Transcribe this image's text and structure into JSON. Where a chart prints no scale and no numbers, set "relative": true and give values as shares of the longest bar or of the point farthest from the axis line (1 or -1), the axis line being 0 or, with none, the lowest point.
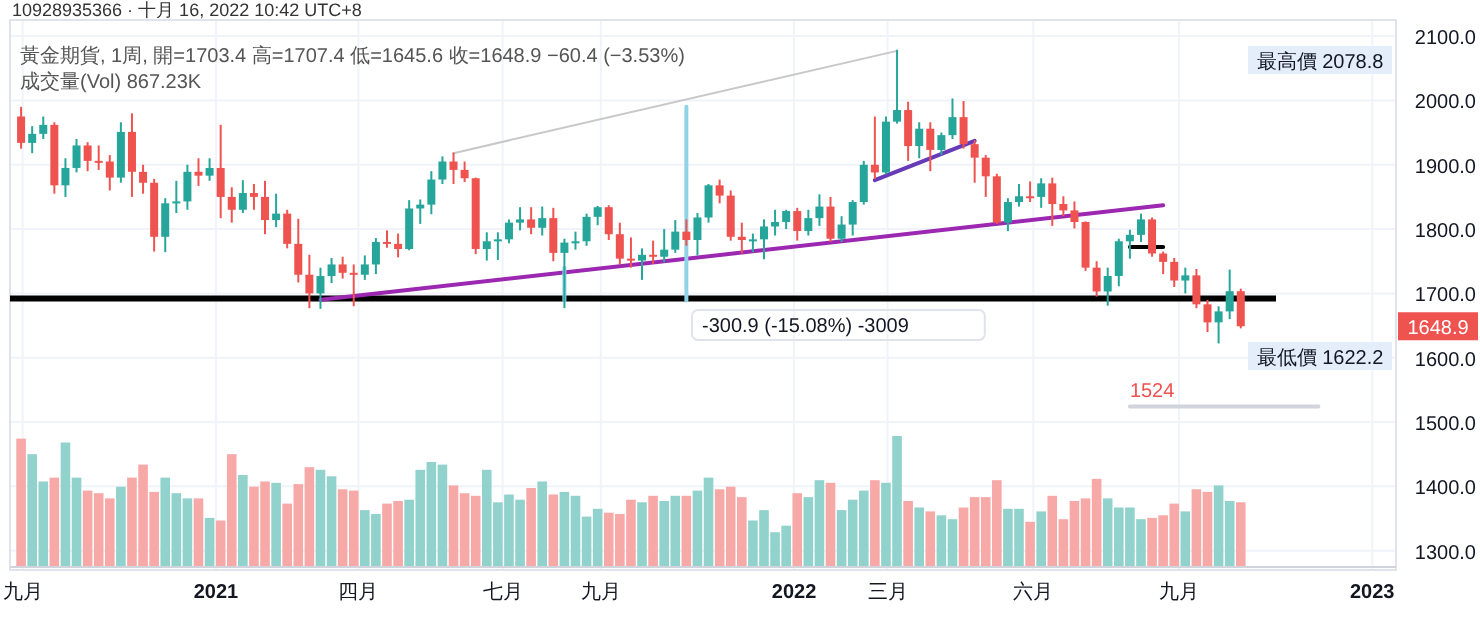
{
  "chart_data": [
    {
      "type": "candlestick",
      "title": "10928935366 · 十月 16, 2022 10:42 UTC+8",
      "subtitle": "黃金期貨, 1周, 開=1703.4 高=1707.4 低=1645.6 收=1648.9 −60.4 (−3.53%)",
      "x": [
        "2020-08-31",
        "2020-09-07",
        "2020-09-14",
        "2020-09-21",
        "2020-09-28",
        "2020-10-05",
        "2020-10-12",
        "2020-10-19",
        "2020-10-26",
        "2020-11-02",
        "2020-11-09",
        "2020-11-16",
        "2020-11-23",
        "2020-11-30",
        "2020-12-07",
        "2020-12-14",
        "2020-12-21",
        "2020-12-28",
        "2021-01-04",
        "2021-01-11",
        "2021-01-18",
        "2021-01-25",
        "2021-02-01",
        "2021-02-08",
        "2021-02-15",
        "2021-02-22",
        "2021-03-01",
        "2021-03-08",
        "2021-03-15",
        "2021-03-22",
        "2021-03-29",
        "2021-04-05",
        "2021-04-12",
        "2021-04-19",
        "2021-04-26",
        "2021-05-03",
        "2021-05-10",
        "2021-05-17",
        "2021-05-24",
        "2021-05-31",
        "2021-06-07",
        "2021-06-14",
        "2021-06-21",
        "2021-06-28",
        "2021-07-05",
        "2021-07-12",
        "2021-07-19",
        "2021-07-26",
        "2021-08-02",
        "2021-08-09",
        "2021-08-16",
        "2021-08-23",
        "2021-08-30",
        "2021-09-06",
        "2021-09-13",
        "2021-09-20",
        "2021-09-27",
        "2021-10-04",
        "2021-10-11",
        "2021-10-18",
        "2021-10-25",
        "2021-11-01",
        "2021-11-08",
        "2021-11-15",
        "2021-11-22",
        "2021-11-29",
        "2021-12-06",
        "2021-12-13",
        "2021-12-20",
        "2021-12-27",
        "2022-01-03",
        "2022-01-10",
        "2022-01-17",
        "2022-01-24",
        "2022-01-31",
        "2022-02-07",
        "2022-02-14",
        "2022-02-21",
        "2022-02-28",
        "2022-03-07",
        "2022-03-14",
        "2022-03-21",
        "2022-03-28",
        "2022-04-04",
        "2022-04-11",
        "2022-04-18",
        "2022-04-25",
        "2022-05-02",
        "2022-05-09",
        "2022-05-16",
        "2022-05-23",
        "2022-05-30",
        "2022-06-06",
        "2022-06-13",
        "2022-06-20",
        "2022-06-27",
        "2022-07-04",
        "2022-07-11",
        "2022-07-18",
        "2022-07-25",
        "2022-08-01",
        "2022-08-08",
        "2022-08-15",
        "2022-08-22",
        "2022-08-29",
        "2022-09-05",
        "2022-09-12",
        "2022-09-19",
        "2022-09-26",
        "2022-10-03",
        "2022-10-10"
      ],
      "ohlc": [
        [
          1975,
          1990,
          1925,
          1934
        ],
        [
          1934,
          1960,
          1918,
          1948
        ],
        [
          1948,
          1975,
          1940,
          1962
        ],
        [
          1962,
          1966,
          1855,
          1868
        ],
        [
          1868,
          1910,
          1850,
          1895
        ],
        [
          1895,
          1940,
          1888,
          1930
        ],
        [
          1930,
          1935,
          1890,
          1906
        ],
        [
          1906,
          1930,
          1892,
          1905
        ],
        [
          1905,
          1915,
          1860,
          1880
        ],
        [
          1880,
          1966,
          1872,
          1951
        ],
        [
          1951,
          1980,
          1850,
          1889
        ],
        [
          1889,
          1900,
          1855,
          1872
        ],
        [
          1872,
          1878,
          1765,
          1788
        ],
        [
          1788,
          1848,
          1764,
          1840
        ],
        [
          1840,
          1875,
          1825,
          1843
        ],
        [
          1843,
          1900,
          1830,
          1889
        ],
        [
          1889,
          1910,
          1867,
          1883
        ],
        [
          1883,
          1910,
          1875,
          1895
        ],
        [
          1895,
          1962,
          1817,
          1850
        ],
        [
          1850,
          1865,
          1810,
          1830
        ],
        [
          1830,
          1876,
          1825,
          1856
        ],
        [
          1856,
          1870,
          1830,
          1850
        ],
        [
          1850,
          1875,
          1792,
          1814
        ],
        [
          1814,
          1855,
          1803,
          1824
        ],
        [
          1824,
          1830,
          1770,
          1777
        ],
        [
          1777,
          1816,
          1717,
          1729
        ],
        [
          1729,
          1760,
          1677,
          1700
        ],
        [
          1700,
          1740,
          1676,
          1727
        ],
        [
          1727,
          1755,
          1716,
          1745
        ],
        [
          1745,
          1757,
          1723,
          1732
        ],
        [
          1732,
          1745,
          1680,
          1729
        ],
        [
          1729,
          1759,
          1721,
          1745
        ],
        [
          1745,
          1786,
          1730,
          1780
        ],
        [
          1780,
          1798,
          1771,
          1777
        ],
        [
          1777,
          1793,
          1756,
          1769
        ],
        [
          1769,
          1845,
          1767,
          1832
        ],
        [
          1832,
          1846,
          1808,
          1838
        ],
        [
          1838,
          1890,
          1823,
          1877
        ],
        [
          1877,
          1913,
          1870,
          1905
        ],
        [
          1905,
          1919,
          1870,
          1892
        ],
        [
          1892,
          1905,
          1873,
          1879
        ],
        [
          1879,
          1880,
          1761,
          1769
        ],
        [
          1769,
          1795,
          1751,
          1781
        ],
        [
          1781,
          1795,
          1752,
          1784
        ],
        [
          1784,
          1815,
          1778,
          1810
        ],
        [
          1810,
          1834,
          1798,
          1815
        ],
        [
          1815,
          1834,
          1792,
          1802
        ],
        [
          1802,
          1835,
          1790,
          1817
        ],
        [
          1817,
          1833,
          1750,
          1763
        ],
        [
          1763,
          1785,
          1677,
          1779
        ],
        [
          1779,
          1796,
          1768,
          1781
        ],
        [
          1781,
          1824,
          1774,
          1819
        ],
        [
          1819,
          1836,
          1806,
          1834
        ],
        [
          1834,
          1837,
          1783,
          1792
        ],
        [
          1792,
          1810,
          1745,
          1754
        ],
        [
          1754,
          1787,
          1740,
          1751
        ],
        [
          1751,
          1770,
          1721,
          1760
        ],
        [
          1760,
          1782,
          1746,
          1757
        ],
        [
          1757,
          1800,
          1748,
          1768
        ],
        [
          1768,
          1814,
          1763,
          1796
        ],
        [
          1796,
          1815,
          1774,
          1783
        ],
        [
          1783,
          1825,
          1759,
          1818
        ],
        [
          1818,
          1870,
          1810,
          1868
        ],
        [
          1868,
          1877,
          1840,
          1852
        ],
        [
          1852,
          1860,
          1782,
          1788
        ],
        [
          1788,
          1810,
          1762,
          1783
        ],
        [
          1783,
          1793,
          1764,
          1784
        ],
        [
          1784,
          1815,
          1753,
          1804
        ],
        [
          1804,
          1830,
          1790,
          1811
        ],
        [
          1811,
          1830,
          1800,
          1828
        ],
        [
          1828,
          1833,
          1782,
          1797
        ],
        [
          1797,
          1830,
          1790,
          1817
        ],
        [
          1817,
          1854,
          1805,
          1835
        ],
        [
          1835,
          1850,
          1780,
          1785
        ],
        [
          1785,
          1820,
          1780,
          1807
        ],
        [
          1807,
          1845,
          1790,
          1842
        ],
        [
          1842,
          1906,
          1838,
          1900
        ],
        [
          1900,
          1975,
          1878,
          1888
        ],
        [
          1888,
          1975,
          1885,
          1967
        ],
        [
          1967,
          2078.8,
          1964,
          1985
        ],
        [
          1985,
          1998,
          1906,
          1929
        ],
        [
          1929,
          1966,
          1910,
          1956
        ],
        [
          1956,
          1966,
          1890,
          1923
        ],
        [
          1923,
          1950,
          1915,
          1946
        ],
        [
          1946,
          2003,
          1940,
          1974
        ],
        [
          1974,
          1999,
          1925,
          1932
        ],
        [
          1932,
          1938,
          1872,
          1911
        ],
        [
          1911,
          1915,
          1850,
          1882
        ],
        [
          1882,
          1886,
          1808,
          1810
        ],
        [
          1810,
          1848,
          1797,
          1842
        ],
        [
          1842,
          1870,
          1835,
          1851
        ],
        [
          1851,
          1874,
          1842,
          1850
        ],
        [
          1850,
          1879,
          1833,
          1871
        ],
        [
          1871,
          1880,
          1805,
          1839
        ],
        [
          1839,
          1851,
          1820,
          1829
        ],
        [
          1829,
          1843,
          1801,
          1811
        ],
        [
          1811,
          1812,
          1735,
          1740
        ],
        [
          1740,
          1750,
          1695,
          1703
        ],
        [
          1703,
          1740,
          1681,
          1727
        ],
        [
          1727,
          1785,
          1711,
          1781
        ],
        [
          1781,
          1799,
          1754,
          1791
        ],
        [
          1791,
          1824,
          1780,
          1815
        ],
        [
          1815,
          1818,
          1757,
          1762
        ],
        [
          1762,
          1765,
          1730,
          1749
        ],
        [
          1749,
          1755,
          1710,
          1720
        ],
        [
          1720,
          1740,
          1700,
          1728
        ],
        [
          1728,
          1738,
          1677,
          1683
        ],
        [
          1683,
          1690,
          1640,
          1655
        ],
        [
          1655,
          1680,
          1622.2,
          1672
        ],
        [
          1672,
          1737,
          1660,
          1703.4
        ],
        [
          1703.4,
          1707.4,
          1645.6,
          1648.9
        ]
      ],
      "colors": [
        "#ef5350",
        "#26a69a",
        "#26a69a",
        "#ef5350",
        "#26a69a",
        "#26a69a",
        "#ef5350",
        "#ef5350",
        "#ef5350",
        "#26a69a",
        "#ef5350",
        "#ef5350",
        "#ef5350",
        "#26a69a",
        "#26a69a",
        "#26a69a",
        "#ef5350",
        "#26a69a",
        "#ef5350",
        "#ef5350",
        "#26a69a",
        "#ef5350",
        "#ef5350",
        "#26a69a",
        "#ef5350",
        "#ef5350",
        "#ef5350",
        "#26a69a",
        "#26a69a",
        "#ef5350",
        "#ef5350",
        "#26a69a",
        "#26a69a",
        "#ef5350",
        "#ef5350",
        "#26a69a",
        "#26a69a",
        "#26a69a",
        "#26a69a",
        "#ef5350",
        "#ef5350",
        "#ef5350",
        "#26a69a",
        "#26a69a",
        "#26a69a",
        "#26a69a",
        "#ef5350",
        "#26a69a",
        "#ef5350",
        "#26a69a",
        "#26a69a",
        "#26a69a",
        "#26a69a",
        "#ef5350",
        "#ef5350",
        "#ef5350",
        "#26a69a",
        "#ef5350",
        "#26a69a",
        "#26a69a",
        "#ef5350",
        "#26a69a",
        "#26a69a",
        "#ef5350",
        "#ef5350",
        "#ef5350",
        "#26a69a",
        "#26a69a",
        "#26a69a",
        "#26a69a",
        "#ef5350",
        "#26a69a",
        "#26a69a",
        "#ef5350",
        "#26a69a",
        "#26a69a",
        "#26a69a",
        "#ef5350",
        "#26a69a",
        "#26a69a",
        "#ef5350",
        "#26a69a",
        "#ef5350",
        "#26a69a",
        "#26a69a",
        "#ef5350",
        "#ef5350",
        "#ef5350",
        "#ef5350",
        "#26a69a",
        "#26a69a",
        "#ef5350",
        "#26a69a",
        "#ef5350",
        "#ef5350",
        "#ef5350",
        "#ef5350",
        "#ef5350",
        "#26a69a",
        "#26a69a",
        "#26a69a",
        "#26a69a",
        "#ef5350",
        "#ef5350",
        "#ef5350",
        "#26a69a",
        "#ef5350",
        "#ef5350",
        "#26a69a",
        "#26a69a",
        "#ef5350"
      ],
      "series": [
        {
          "type": "line",
          "x": [
            "2021-03-08",
            "2022-08-22"
          ],
          "values": [
            1690,
            1837
          ],
          "color": "#9c27b0"
        },
        {
          "type": "line",
          "x": [
            "2022-02-21",
            "2022-04-25"
          ],
          "values": [
            1876,
            1937
          ],
          "color": "#673ab7"
        },
        {
          "type": "line",
          "x": [
            "2021-05-31",
            "2022-03-07"
          ],
          "values": [
            1918,
            2077
          ],
          "color": "#c8c8c8"
        },
        {
          "type": "line",
          "x": [
            "2022-08-01",
            "2022-08-22"
          ],
          "values": [
            1772,
            1772
          ],
          "color": "#000000"
        },
        {
          "type": "line",
          "x": [
            "2021-10-25",
            "2021-10-25"
          ],
          "values": [
            1990,
            1689
          ],
          "color": "#8fd3e8"
        },
        {
          "type": "line",
          "x": [
            "2021-08-09",
            "2021-08-09"
          ],
          "values": [
            1740,
            1689
          ],
          "color": "#8fd3e8"
        },
        {
          "type": "line",
          "x": [
            "2022-08-01",
            "2022-11-28"
          ],
          "values": [
            1524,
            1524
          ],
          "color": "#d1d4dc"
        }
      ],
      "ref_lines": [
        {
          "axis": "y",
          "value": 1692,
          "color": "#000000"
        }
      ],
      "annotations": [
        "-300.9 (-15.08%) -3009",
        {
          "text": "1524",
          "x": "2022-08-01",
          "y": 1524
        },
        "最高價 2078.8",
        "最低價 1622.2",
        {
          "text": "1648.9",
          "y": 1648.9
        }
      ],
      "xlim": [
        "2020-08-24",
        "2023-01-16"
      ],
      "xticks": [
        {
          "value": "2020-09-01",
          "label": "九月"
        },
        {
          "value": "2021-01-01",
          "label": "2021"
        },
        {
          "value": "2021-04-01",
          "label": "四月"
        },
        {
          "value": "2021-07-01",
          "label": "七月"
        },
        {
          "value": "2021-09-01",
          "label": "九月"
        },
        {
          "value": "2022-01-01",
          "label": "2022"
        },
        {
          "value": "2022-03-01",
          "label": "三月"
        },
        {
          "value": "2022-06-01",
          "label": "六月"
        },
        {
          "value": "2022-09-01",
          "label": "九月"
        },
        {
          "value": "2023-01-01",
          "label": "2023"
        }
      ],
      "ylim": [
        1270,
        2125
      ],
      "yticks": [
        {
          "value": 1300,
          "label": "1300.0"
        },
        {
          "value": 1400,
          "label": "1400.0"
        },
        {
          "value": 1500,
          "label": "1500.0"
        },
        {
          "value": 1600,
          "label": "1600.0"
        },
        {
          "value": 1700,
          "label": "1700.0"
        },
        {
          "value": 1800,
          "label": "1800.0"
        },
        {
          "value": 1900,
          "label": "1900.0"
        },
        {
          "value": 2000,
          "label": "2000.0"
        },
        {
          "value": 2100,
          "label": "2100.0"
        }
      ],
      "grid": true
    },
    {
      "type": "bar",
      "relative": true,
      "annotations": [
        "成交量(Vol) 867.23K"
      ],
      "categories": [
        null,
        null,
        null,
        null,
        null,
        null,
        null,
        null,
        null,
        null,
        null,
        null,
        null,
        null,
        null,
        null,
        null,
        null,
        null,
        null,
        null,
        null,
        null,
        null,
        null,
        null,
        null,
        null,
        null,
        null,
        null,
        null,
        null,
        null,
        null,
        null,
        null,
        null,
        null,
        null,
        null,
        null,
        null,
        null,
        null,
        null,
        null,
        null,
        null,
        null,
        null,
        null,
        null,
        null,
        null,
        null,
        null,
        null,
        null,
        null,
        null,
        null,
        null,
        null,
        null,
        null,
        null,
        null,
        null,
        null,
        null,
        null,
        null,
        null,
        null,
        null,
        null,
        null,
        null,
        null,
        null,
        null,
        null,
        null,
        null,
        null,
        null,
        null,
        null,
        null,
        null,
        null,
        null,
        null,
        null,
        null,
        null,
        null,
        null,
        null,
        null,
        null,
        null,
        null,
        null,
        null,
        null,
        null,
        null,
        null,
        null
      ],
      "values": [
        0.98,
        0.86,
        0.65,
        0.68,
        0.95,
        0.68,
        0.58,
        0.56,
        0.52,
        0.61,
        0.68,
        0.78,
        0.57,
        0.68,
        0.56,
        0.52,
        0.52,
        0.37,
        0.35,
        0.86,
        0.7,
        0.61,
        0.65,
        0.64,
        0.48,
        0.63,
        0.76,
        0.74,
        0.69,
        0.59,
        0.58,
        0.43,
        0.4,
        0.48,
        0.5,
        0.51,
        0.74,
        0.8,
        0.78,
        0.62,
        0.56,
        0.54,
        0.74,
        0.49,
        0.55,
        0.51,
        0.6,
        0.65,
        0.55,
        0.57,
        0.54,
        0.38,
        0.44,
        0.41,
        0.4,
        0.51,
        0.49,
        0.54,
        0.5,
        0.54,
        0.54,
        0.58,
        0.68,
        0.59,
        0.61,
        0.53,
        0.35,
        0.43,
        0.26,
        0.31,
        0.56,
        0.53,
        0.66,
        0.64,
        0.43,
        0.51,
        0.58,
        0.66,
        0.64,
        1,
        0.5,
        0.45,
        0.42,
        0.39,
        0.36,
        0.45,
        0.53,
        0.53,
        0.66,
        0.44,
        0.44,
        0.34,
        0.42,
        0.54,
        0.36,
        0.5,
        0.52,
        0.67,
        0.52,
        0.45,
        0.45,
        0.36,
        0.37,
        0.39,
        0.48,
        0.42,
        0.59,
        0.57,
        0.62,
        0.5,
        0.49
      ],
      "colors": [
        "#f7a9a7",
        "#92d2cc",
        "#92d2cc",
        "#f7a9a7",
        "#92d2cc",
        "#92d2cc",
        "#f7a9a7",
        "#f7a9a7",
        "#f7a9a7",
        "#92d2cc",
        "#f7a9a7",
        "#f7a9a7",
        "#f7a9a7",
        "#92d2cc",
        "#92d2cc",
        "#92d2cc",
        "#f7a9a7",
        "#92d2cc",
        "#f7a9a7",
        "#f7a9a7",
        "#92d2cc",
        "#f7a9a7",
        "#f7a9a7",
        "#92d2cc",
        "#f7a9a7",
        "#f7a9a7",
        "#f7a9a7",
        "#92d2cc",
        "#92d2cc",
        "#f7a9a7",
        "#f7a9a7",
        "#92d2cc",
        "#92d2cc",
        "#f7a9a7",
        "#f7a9a7",
        "#92d2cc",
        "#92d2cc",
        "#92d2cc",
        "#92d2cc",
        "#f7a9a7",
        "#f7a9a7",
        "#f7a9a7",
        "#92d2cc",
        "#92d2cc",
        "#92d2cc",
        "#92d2cc",
        "#f7a9a7",
        "#92d2cc",
        "#f7a9a7",
        "#92d2cc",
        "#92d2cc",
        "#92d2cc",
        "#92d2cc",
        "#f7a9a7",
        "#f7a9a7",
        "#f7a9a7",
        "#92d2cc",
        "#f7a9a7",
        "#92d2cc",
        "#92d2cc",
        "#f7a9a7",
        "#92d2cc",
        "#92d2cc",
        "#f7a9a7",
        "#f7a9a7",
        "#f7a9a7",
        "#92d2cc",
        "#92d2cc",
        "#92d2cc",
        "#92d2cc",
        "#f7a9a7",
        "#92d2cc",
        "#92d2cc",
        "#f7a9a7",
        "#92d2cc",
        "#92d2cc",
        "#92d2cc",
        "#f7a9a7",
        "#92d2cc",
        "#92d2cc",
        "#f7a9a7",
        "#92d2cc",
        "#f7a9a7",
        "#92d2cc",
        "#92d2cc",
        "#f7a9a7",
        "#f7a9a7",
        "#f7a9a7",
        "#f7a9a7",
        "#92d2cc",
        "#92d2cc",
        "#f7a9a7",
        "#92d2cc",
        "#f7a9a7",
        "#f7a9a7",
        "#f7a9a7",
        "#f7a9a7",
        "#f7a9a7",
        "#92d2cc",
        "#92d2cc",
        "#92d2cc",
        "#92d2cc",
        "#f7a9a7",
        "#f7a9a7",
        "#f7a9a7",
        "#92d2cc",
        "#f7a9a7",
        "#f7a9a7",
        "#92d2cc",
        "#92d2cc",
        "#f7a9a7"
      ]
    }
  ]
}
